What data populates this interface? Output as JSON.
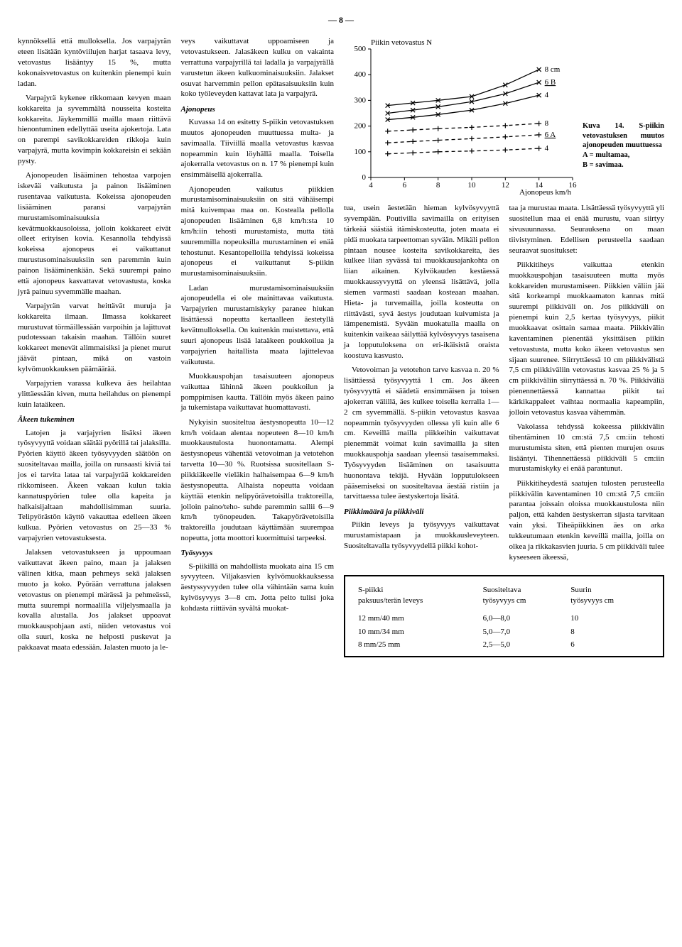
{
  "page_number": "— 8 —",
  "col1": {
    "p1": "kynnöksellä että mulloksella. Jos varpajyrän eteen lisätään kyntöviilujen harjat tasaava levy, vetovastus lisääntyy 15 %, mutta kokonaisvetovastus on kuitenkin pienempi kuin ladan.",
    "p2": "Varpajyrä kykenee rikkomaan kevyen maan kokkareita ja syvemmältä nousseita kosteita kokkareita. Jäykemmillä mailla maan riittävä hienontuminen edellyttää useita ajokertoja. Lata on parempi savikokkareiden rikkoja kuin varpajyrä, mutta kovimpin kokkareisin ei sekään pysty.",
    "p3": "Ajonopeuden lisääminen tehostaa varpojen iskevää vaikutusta ja painon lisääminen rusentavaa vaikutusta. Kokeissa ajonopeuden lisääminen paransi varpajyrän murustamisominaisuuksia kevätmuokkausoloissa, jolloin kokkareet eivät olleet erityisen kovia. Kesannolla tehdyissä kokeissa ajonopeus ei vaikuttanut murustusominaisuuksiin sen paremmin kuin painon lisääminenkään. Sekä suurempi paino että ajonopeus kasvattavat vetovastusta, koska jyrä painuu syvemmälle maahan.",
    "p4": "Varpajyrän varvat heittävät muruja ja kokkareita ilmaan. Ilmassa kokkareet murustuvat törmäillessään varpoihin ja lajittuvat pudotessaan takaisin maahan. Tällöin suuret kokkareet menevät alimmaisiksi ja pienet murut jäävät pintaan, mikä on vastoin kylvömuokkauksen päämäärää.",
    "p5": "Varpajyrien varassa kulkeva äes heilahtaa ylittäessään kiven, mutta heilahdus on pienempi kuin lataäkeen.",
    "h1": "Äkeen tukeminen",
    "p6": "Latojen ja varjajyrien lisäksi äkeen työsyvyyttä voidaan säätää pyörillä tai jalaksilla. Pyörien käyttö äkeen työsyvyyden säätöön on suositeltavaa mailla, joilla on runsaasti kiviä tai jos ei tarvita lataa tai varpajyrää kokkareiden rikkomiseen. Äkeen vakaan kulun takia kannatuspyörien tulee olla kapeita ja halkaisijaltaan mahdollisimman suuria. Telipyörästön käyttö vakauttaa edelleen äkeen kulkua. Pyörien vetovastus on 25—33 % varpajyrien vetovastuksesta.",
    "p7": "Jalaksen vetovastukseen ja uppoumaan vaikuttavat äkeen paino, maan ja jalaksen välinen kitka, maan pehmeys sekä jalaksen muoto ja koko. Pyörään verrattuna jalaksen vetovastus on pienempi märässä ja pehmeässä, mutta suurempi normaalilla viljelysmaalla ja kovalla alustalla. Jos jalakset uppoavat muokkauspohjaan asti, niiden vetovastus voi olla suuri, koska ne helposti puskevat ja pakkaavat maata edessään. Jalasten muoto ja le-"
  },
  "col2": {
    "p1": "veys vaikuttavat uppoamiseen ja vetovastukseen. Jalasäkeen kulku on vakainta verrattuna varpajyrillä tai ladalla ja varpajyrällä varustetun äkeen kulkuominaisuuksiin. Jalakset osuvat harvemmin pellon epätasaisuuksiin kuin koko työleveyden kattavat lata ja varpajyrä.",
    "h1": "Ajonopeus",
    "p2": "Kuvassa 14 on esitetty S-piikin vetovastuksen muutos ajonopeuden muuttuessa multa- ja savimaalla. Tiiviillä maalla vetovastus kasvaa nopeammin kuin löyhällä maalla. Toisella ajokerralla vetovastus on n. 17 % pienempi kuin ensimmäisellä ajokerralla.",
    "p3": "Ajonopeuden vaikutus piikkien murustamisominaisuuksiin on sitä vähäisempi mitä kuivempaa maa on. Kostealla pellolla ajonopeuden lisääminen 6,8 km/h:sta 10 km/h:iin tehosti murustamista, mutta tätä suuremmilla nopeuksilla murustaminen ei enää tehostunut. Kesantopelloilla tehdyissä kokeissa ajonopeus ei vaikuttanut S-piikin murustamisominaisuuksiin.",
    "p4": "Ladan murustamisominaisuuksiin ajonopeudella ei ole mainittavaa vaikutusta. Varpajyrien murustamiskyky paranee hiukan lisättäessä nopeutta kertaalleen äestetyllä kevätmulloksella. On kuitenkin muistettava, että suuri ajonopeus lisää lataäkeen poukkoilua ja varpajyrien haitallista maata lajittelevaa vaikutusta.",
    "p5": "Muokkauspohjan tasaisuuteen ajonopeus vaikuttaa lähinnä äkeen poukkoilun ja pomppimisen kautta. Tällöin myös äkeen paino ja tukemistapa vaikuttavat huomattavasti.",
    "p6": "Nykyisin suositeltua äestysnopeutta 10—12 km/h voidaan alentaa nopeuteen 8—10 km/h muokkaustulosta huonontamatta. Alempi äestysnopeus vähentää vetovoiman ja vetotehon tarvetta 10—30 %. Ruotsissa suositellaan S-piikkiäkeelle vieläkin halhaisempaa 6—9 km/h äestysnopeutta. Alhaista nopeutta voidaan käyttää etenkin nelipyörävetoisilla traktoreilla, jolloin paino/teho- suhde paremmin sallii 6—9 km/h työnopeuden. Takapyörävetoisilla traktoreilla joudutaan käyttämään suurempaa nopeutta, jotta moottori kuormittuisi tarpeeksi.",
    "h2": "Työsyvyys",
    "p7": "S-piikillä on mahdollista muokata aina 15 cm syvyyteen. Viljakasvien kylvömuokkauksessa äestyssyvyyden tulee olla vähintään sama kuin kylvösyvyys 3—8 cm. Jotta pelto tulisi joka kohdasta riittävän syvältä muokat-"
  },
  "chart": {
    "title": "Piikin vetovastus N",
    "ylabel": "",
    "xlabel": "Ajonopeus km/h",
    "xlim": [
      4,
      16
    ],
    "ylim": [
      0,
      500
    ],
    "xticks": [
      4,
      6,
      8,
      10,
      12,
      14,
      16
    ],
    "yticks": [
      0,
      100,
      200,
      300,
      400,
      500
    ],
    "series": [
      {
        "label": "8 cm",
        "marker": "x",
        "style": "solid",
        "pts": [
          [
            5,
            280
          ],
          [
            6.5,
            290
          ],
          [
            8,
            300
          ],
          [
            10,
            315
          ],
          [
            12,
            360
          ],
          [
            14,
            420
          ]
        ]
      },
      {
        "label": "6 B",
        "marker": "x",
        "style": "solid",
        "pts": [
          [
            5,
            250
          ],
          [
            6.5,
            262
          ],
          [
            8,
            275
          ],
          [
            10,
            295
          ],
          [
            12,
            326
          ],
          [
            14,
            370
          ]
        ],
        "underline": true
      },
      {
        "label": "4",
        "marker": "x",
        "style": "solid",
        "pts": [
          [
            5,
            225
          ],
          [
            6.5,
            234
          ],
          [
            8,
            245
          ],
          [
            10,
            262
          ],
          [
            12,
            288
          ],
          [
            14,
            320
          ]
        ]
      },
      {
        "label": "8",
        "marker": "+",
        "style": "dash",
        "pts": [
          [
            5,
            180
          ],
          [
            6.5,
            185
          ],
          [
            8,
            190
          ],
          [
            10,
            195
          ],
          [
            12,
            202
          ],
          [
            14,
            210
          ]
        ]
      },
      {
        "label": "6 A",
        "marker": "+",
        "style": "dash",
        "pts": [
          [
            5,
            135
          ],
          [
            6.5,
            140
          ],
          [
            8,
            145
          ],
          [
            10,
            151
          ],
          [
            12,
            158
          ],
          [
            14,
            166
          ]
        ],
        "underline": true
      },
      {
        "label": "4",
        "marker": "+",
        "style": "dash",
        "pts": [
          [
            5,
            92
          ],
          [
            6.5,
            96
          ],
          [
            8,
            100
          ],
          [
            10,
            103
          ],
          [
            12,
            107
          ],
          [
            14,
            113
          ]
        ]
      }
    ],
    "caption_bold1": "Kuva 14. S-piikin vetovastuksen muutos ajonopeuden muuttuessa",
    "caption_bold2": "A = multamaa,",
    "caption_bold3": "B = savimaa.",
    "axis_color": "#000000",
    "line_color": "#000000",
    "font_size": 11
  },
  "lower_c1": {
    "p1": "tua, usein äestetään hieman kylvösyvyyttä syvempään. Poutivilla savimailla on erityisen tärkeää säästää itämiskosteutta, joten maata ei pidä muokata tarpeettoman syvään. Mikäli pellon pintaan nousee kosteita savikokkareita, äes kulkee liian syvässä tai muokkausajankohta on liian aikainen. Kylvökauden kestäessä muokkaussyvyyttä on yleensä lisättävä, jolla siemen varmasti saadaan kosteaan maahan. Hieta- ja turvemailla, joilla kosteutta on riittävästi, syvä äestys joudutaan kuivumista ja lämpenemistä. Syvään muokatulla maalla on kuitenkin vaikeaa säilyttää kylvösyvyys tasaisena ja lopputuloksena on eri-ikäisistä oraista koostuva kasvusto.",
    "p2": "Vetovoiman ja vetotehon tarve kasvaa n. 20 % lisättäessä työsyvyyttä 1 cm. Jos äkeen työsyvyyttä ei säädetä ensimmäisen ja toisen ajokerran välillä, äes kulkee toisella kerralla 1—2 cm syvemmällä. S-piikin vetovastus kasvaa nopeammin työsyvyyden ollessa yli kuin alle 6 cm. Keveillä mailla piikkeihin vaikuttavat pienemmät voimat kuin savimailla ja siten muokkauspohja saadaan yleensä tasaisemmaksi. Työsyvyyden lisääminen on tasaisuutta huonontava tekijä. Hyvään lopputulokseen pääsemiseksi on suositeltavaa äestää ristiin ja tarvittaessa tulee äestyskertoja lisätä.",
    "h1": "Piikkimäärä ja piikkiväli",
    "p3": "Piikin leveys ja työsyvyys vaikuttavat murustamistapaan ja muokkausleveyteen. Suositeltavalla työsyvyydellä piikki kohot-"
  },
  "lower_c2": {
    "p1": "taa ja murustaa maata. Lisättäessä työsyvyyttä yli suositellun maa ei enää murustu, vaan siirtyy sivusuunnassa. Seurauksena on maan tiivistyminen. Edellisen perusteella saadaan seuraavat suositukset:",
    "p2": "Piikkitiheys vaikuttaa etenkin muokkauspohjan tasaisuuteen mutta myös kokkareiden murustamiseen. Piikkien väliin jää sitä korkeampi muokkaamaton kannas mitä suurempi piikkiväli on. Jos piikkiväli on pienempi kuin 2,5 kertaa työsyvyys, piikit muokkaavat osittain samaa maata. Piikkivälin kaventaminen pienentää yksittäisen piikin vetovastusta, mutta koko äkeen vetovastus sen sijaan suurenee. Siirryttäessä 10 cm piikkivälistä 7,5 cm piikkiväliin vetovastus kasvaa 25 % ja 5 cm piikkiväliin siirryttäessä n. 70 %. Piikkiväliä pienennettäessä kannattaa piikit tai kärkikappaleet vaihtaa normaalia kapeampiin, jolloin vetovastus kasvaa vähemmän.",
    "p3": "Vakolassa tehdyssä kokeessa piikkivälin tihentäminen 10 cm:stä 7,5 cm:iin tehosti murustumista siten, että pienten murujen osuus lisääntyi. Tihennettäessä piikkiväli 5 cm:iin murustamiskyky ei enää parantunut.",
    "p4": "Piikkitiheydestä saatujen tulosten perusteella piikkivälin kaventaminen 10 cm:stä 7,5 cm:iin parantaa joissain oloissa muokkaustulosta niin paljon, että kahden äestyskerran sijasta tarvitaan vain yksi. Tiheäpiikkinen äes on arka tukkeutumaan etenkin keveillä mailla, joilla on olkea ja rikkakasvien juuria. 5 cm piikkiväli tulee kyseeseen äkeessä,"
  },
  "table": {
    "h1a": "S-piikki",
    "h1b": "paksuus/terän leveys",
    "h2a": "Suositeltava",
    "h2b": "työsyvyys cm",
    "h3a": "Suurin",
    "h3b": "työsyvyys cm",
    "rows": [
      {
        "c1": "12 mm/40 mm",
        "c2": "6,0—8,0",
        "c3": "10"
      },
      {
        "c1": "10 mm/34 mm",
        "c2": "5,0—7,0",
        "c3": "8"
      },
      {
        "c1": "8 mm/25 mm",
        "c2": "2,5—5,0",
        "c3": "6"
      }
    ]
  }
}
